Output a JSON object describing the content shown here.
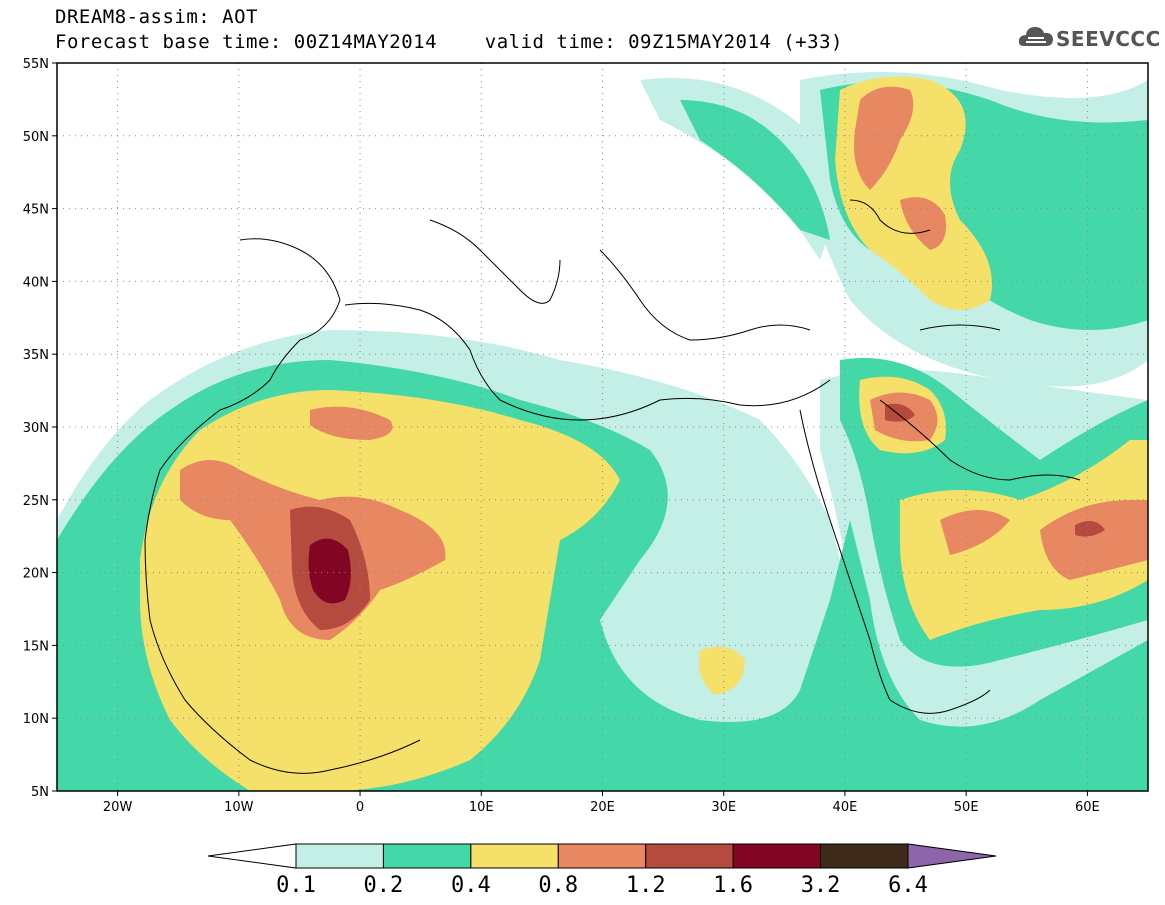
{
  "header": {
    "line1": "DREAM8-assim: AOT",
    "line2": "Forecast base time: 00Z14MAY2014    valid time: 09Z15MAY2014 (+33)"
  },
  "logo": {
    "text": "SEEVCCC",
    "icon": "cloud-icon"
  },
  "map": {
    "lon_range": [
      -25,
      65
    ],
    "lat_range": [
      5,
      55
    ],
    "lat_ticks": [
      {
        "value": 55,
        "label": "55N"
      },
      {
        "value": 50,
        "label": "50N"
      },
      {
        "value": 45,
        "label": "45N"
      },
      {
        "value": 40,
        "label": "40N"
      },
      {
        "value": 35,
        "label": "35N"
      },
      {
        "value": 30,
        "label": "30N"
      },
      {
        "value": 25,
        "label": "25N"
      },
      {
        "value": 20,
        "label": "20N"
      },
      {
        "value": 15,
        "label": "15N"
      },
      {
        "value": 10,
        "label": "10N"
      },
      {
        "value": 5,
        "label": "5N"
      }
    ],
    "lon_ticks": [
      {
        "value": -20,
        "label": "20W"
      },
      {
        "value": -10,
        "label": "10W"
      },
      {
        "value": 0,
        "label": "0"
      },
      {
        "value": 10,
        "label": "10E"
      },
      {
        "value": 20,
        "label": "20E"
      },
      {
        "value": 30,
        "label": "30E"
      },
      {
        "value": 40,
        "label": "40E"
      },
      {
        "value": 50,
        "label": "50E"
      },
      {
        "value": 60,
        "label": "60E"
      }
    ],
    "grid": "dotted"
  },
  "colorbar": {
    "colors": [
      "#ffffff",
      "#c4efe6",
      "#44d7a7",
      "#f5e06a",
      "#e88863",
      "#b54a3e",
      "#820624",
      "#3e2a18",
      "#8c66a8"
    ],
    "labels": [
      "0.1",
      "0.2",
      "0.4",
      "0.8",
      "1.2",
      "1.6",
      "3.2",
      "6.4"
    ]
  }
}
